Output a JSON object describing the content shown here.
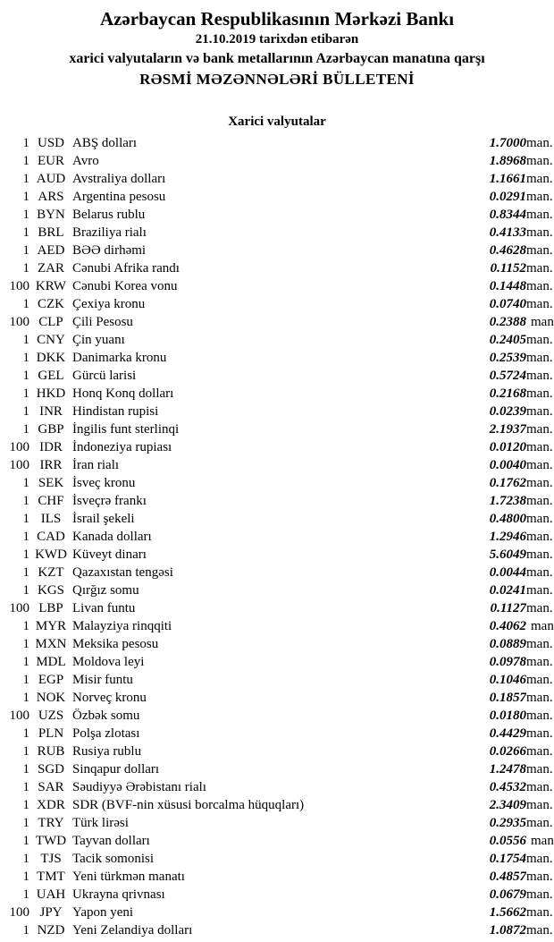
{
  "header": {
    "bank_name": "Azərbaycan Respublikasının Mərkəzi Bankı",
    "date_line": "21.10.2019 tarixdən etibarən",
    "subtitle": "xarici valyutaların və bank metallarının Azərbaycan manatına qarşı",
    "bulletin_title": "RƏSMİ MƏZƏNNƏLƏRİ BÜLLETENİ"
  },
  "section": {
    "title": "Xarici valyutalar"
  },
  "unit_label": "man.",
  "colors": {
    "text": "#000000",
    "background": "#ffffff"
  },
  "rows": [
    {
      "qty": "1",
      "code": "USD",
      "name": "ABŞ dolları",
      "rate": "1.7000"
    },
    {
      "qty": "1",
      "code": "EUR",
      "name": "Avro",
      "rate": "1.8968"
    },
    {
      "qty": "1",
      "code": "AUD",
      "name": "Avstraliya dolları",
      "rate": "1.1661"
    },
    {
      "qty": "1",
      "code": "ARS",
      "name": "Argentina pesosu",
      "rate": "0.0291"
    },
    {
      "qty": "1",
      "code": "BYN",
      "name": "Belarus rublu",
      "rate": "0.8344"
    },
    {
      "qty": "1",
      "code": "BRL",
      "name": "Braziliya rialı",
      "rate": "0.4133"
    },
    {
      "qty": "1",
      "code": "AED",
      "name": "BƏƏ dirhəmi",
      "rate": "0.4628"
    },
    {
      "qty": "1",
      "code": "ZAR",
      "name": "Cənubi Afrika randı",
      "rate": "0.1152"
    },
    {
      "qty": "100",
      "code": "KRW",
      "name": "Cənubi Korea vonu",
      "rate": "0.1448"
    },
    {
      "qty": "1",
      "code": "CZK",
      "name": "Çexiya kronu",
      "rate": "0.0740"
    },
    {
      "qty": "100",
      "code": "CLP",
      "name": "Çili Pesosu",
      "rate": "0.2388",
      "tight": true
    },
    {
      "qty": "1",
      "code": "CNY",
      "name": "Çin yuanı",
      "rate": "0.2405"
    },
    {
      "qty": "1",
      "code": "DKK",
      "name": "Danimarka kronu",
      "rate": "0.2539"
    },
    {
      "qty": "1",
      "code": "GEL",
      "name": "Gürcü larisi",
      "rate": "0.5724"
    },
    {
      "qty": "1",
      "code": "HKD",
      "name": "Honq Konq dolları",
      "rate": "0.2168"
    },
    {
      "qty": "1",
      "code": "INR",
      "name": "Hindistan rupisi",
      "rate": "0.0239"
    },
    {
      "qty": "1",
      "code": "GBP",
      "name": "İngilis funt sterlinqi",
      "rate": "2.1937"
    },
    {
      "qty": "100",
      "code": "IDR",
      "name": "İndoneziya rupiası",
      "rate": "0.0120"
    },
    {
      "qty": "100",
      "code": "IRR",
      "name": "İran rialı",
      "rate": "0.0040"
    },
    {
      "qty": "1",
      "code": "SEK",
      "name": "İsveç kronu",
      "rate": "0.1762"
    },
    {
      "qty": "1",
      "code": "CHF",
      "name": "İsveçrə frankı",
      "rate": "1.7238"
    },
    {
      "qty": "1",
      "code": "ILS",
      "name": "İsrail şekeli",
      "rate": "0.4800"
    },
    {
      "qty": "1",
      "code": "CAD",
      "name": "Kanada dolları",
      "rate": "1.2946"
    },
    {
      "qty": "1",
      "code": "KWD",
      "name": "Küveyt dinarı",
      "rate": "5.6049"
    },
    {
      "qty": "1",
      "code": "KZT",
      "name": "Qazaxıstan tengəsi",
      "rate": "0.0044"
    },
    {
      "qty": "1",
      "code": "KGS",
      "name": "Qırğız somu",
      "rate": "0.0241"
    },
    {
      "qty": "100",
      "code": "LBP",
      "name": "Livan funtu",
      "rate": "0.1127"
    },
    {
      "qty": "1",
      "code": "MYR",
      "name": "Malayziya rinqqiti",
      "rate": "0.4062",
      "tight": true
    },
    {
      "qty": "1",
      "code": "MXN",
      "name": "Meksika pesosu",
      "rate": "0.0889"
    },
    {
      "qty": "1",
      "code": "MDL",
      "name": "Moldova leyi",
      "rate": "0.0978"
    },
    {
      "qty": "1",
      "code": "EGP",
      "name": "Misir funtu",
      "rate": "0.1046"
    },
    {
      "qty": "1",
      "code": "NOK",
      "name": "Norveç kronu",
      "rate": "0.1857"
    },
    {
      "qty": "100",
      "code": "UZS",
      "name": "Özbək somu",
      "rate": "0.0180"
    },
    {
      "qty": "1",
      "code": "PLN",
      "name": "Polşa zlotası",
      "rate": "0.4429"
    },
    {
      "qty": "1",
      "code": "RUB",
      "name": "Rusiya rublu",
      "rate": "0.0266"
    },
    {
      "qty": "1",
      "code": "SGD",
      "name": "Sinqapur dolları",
      "rate": "1.2478"
    },
    {
      "qty": "1",
      "code": "SAR",
      "name": "Səudiyyə Ərəbistanı rialı",
      "rate": "0.4532"
    },
    {
      "qty": "1",
      "code": "XDR",
      "name": "SDR (BVF-nin xüsusi borcalma hüquqları)",
      "rate": "2.3409"
    },
    {
      "qty": "1",
      "code": "TRY",
      "name": "Türk lirəsi",
      "rate": "0.2935"
    },
    {
      "qty": "1",
      "code": "TWD",
      "name": "Tayvan dolları",
      "rate": "0.0556",
      "tight": true
    },
    {
      "qty": "1",
      "code": "TJS",
      "name": "Tacik somonisi",
      "rate": "0.1754"
    },
    {
      "qty": "1",
      "code": "TMT",
      "name": "Yeni türkmən manatı",
      "rate": "0.4857"
    },
    {
      "qty": "1",
      "code": "UAH",
      "name": "Ukrayna qrivnası",
      "rate": "0.0679"
    },
    {
      "qty": "100",
      "code": "JPY",
      "name": "Yapon yeni",
      "rate": "1.5662"
    },
    {
      "qty": "1",
      "code": "NZD",
      "name": "Yeni Zelandiya dolları",
      "rate": "1.0872"
    }
  ]
}
